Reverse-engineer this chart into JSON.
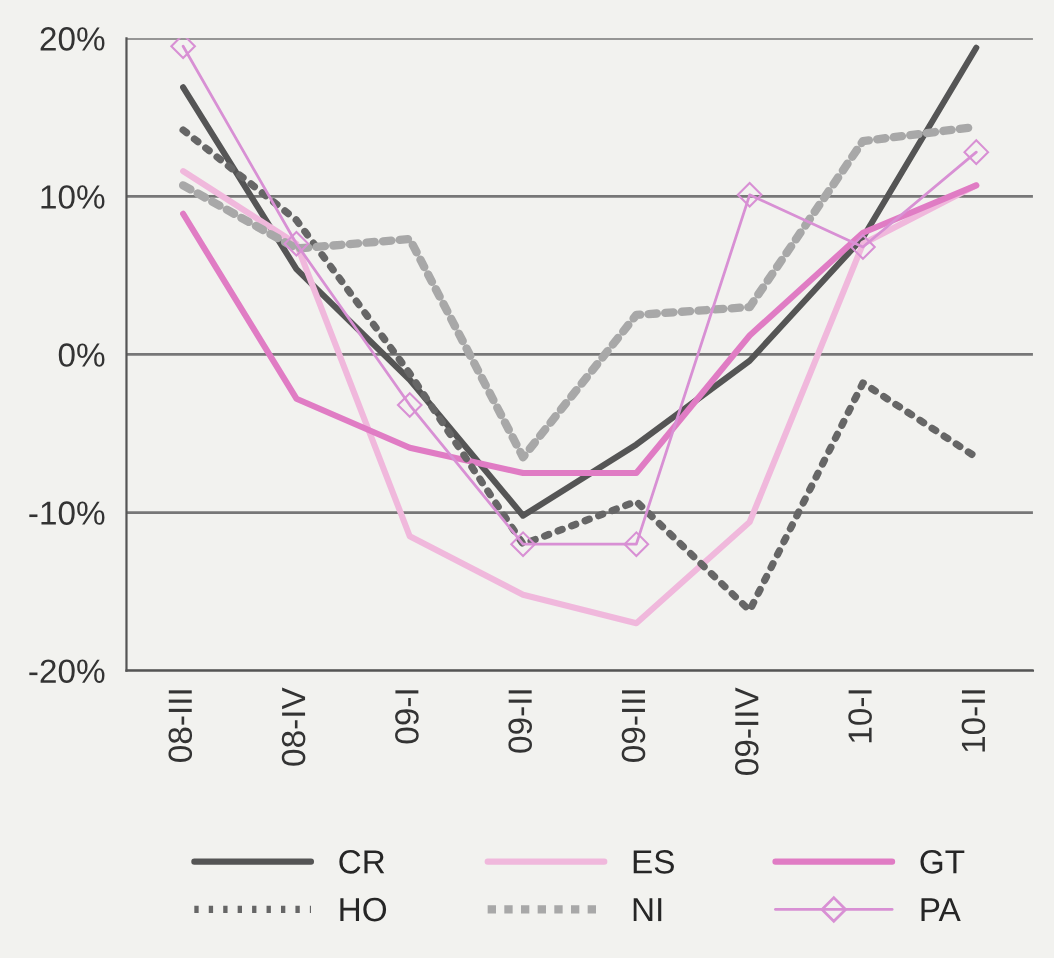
{
  "chart_data": {
    "type": "line",
    "categories": [
      "08-III",
      "08-IV",
      "09-I",
      "09-II",
      "09-III",
      "09-IIV",
      "10-I",
      "10-II"
    ],
    "series": [
      {
        "name": "CR",
        "color": "#555555",
        "line_style": "solid",
        "marker": "none",
        "values": [
          16.9,
          5.4,
          -1.6,
          -10.2,
          -5.7,
          -0.4,
          7.4,
          19.4
        ]
      },
      {
        "name": "ES",
        "color": "#f0b8dc",
        "line_style": "solid",
        "marker": "none",
        "values": [
          11.6,
          7.0,
          -11.5,
          -15.2,
          -17.0,
          -10.6,
          7.0,
          10.7
        ]
      },
      {
        "name": "GT",
        "color": "#e07cc4",
        "line_style": "solid",
        "marker": "none",
        "values": [
          8.9,
          -2.8,
          -5.9,
          -7.5,
          -7.5,
          1.2,
          7.7,
          10.7
        ]
      },
      {
        "name": "HO",
        "color": "#666666",
        "line_style": "dotted",
        "marker": "none",
        "values": [
          14.2,
          8.5,
          -1.2,
          -12.0,
          -9.3,
          -16.2,
          -1.8,
          -6.5
        ]
      },
      {
        "name": "NI",
        "color": "#a8a8a8",
        "line_style": "dashed",
        "marker": "none",
        "values": [
          10.7,
          6.7,
          7.3,
          -6.5,
          2.5,
          3.0,
          13.5,
          14.4
        ]
      },
      {
        "name": "PA",
        "color": "#d890d4",
        "line_style": "solid",
        "marker": "diamond",
        "values": [
          19.5,
          7.0,
          -3.2,
          -12.0,
          -12.0,
          10.1,
          6.8,
          12.8
        ]
      }
    ],
    "ylim": [
      -20,
      20
    ],
    "yticks": [
      {
        "value": -20,
        "label": "-20%"
      },
      {
        "value": -10,
        "label": "-10%"
      },
      {
        "value": 0,
        "label": "0%"
      },
      {
        "value": 10,
        "label": "10%"
      },
      {
        "value": 20,
        "label": "20%"
      }
    ],
    "grid": "y",
    "legend": "bottom"
  }
}
